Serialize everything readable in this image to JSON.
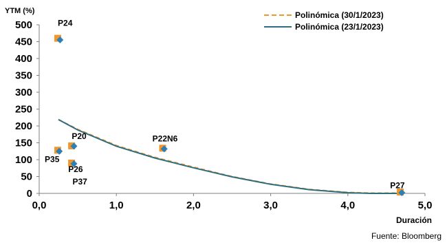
{
  "chart_data": {
    "type": "scatter",
    "ylabel": "YTM (%)",
    "xlabel": "Duración",
    "xlim": [
      0,
      5
    ],
    "ylim": [
      0,
      500
    ],
    "x_ticks": [
      "0,0",
      "1,0",
      "2,0",
      "3,0",
      "4,0",
      "5,0"
    ],
    "y_ticks": [
      "0",
      "50",
      "100",
      "150",
      "200",
      "250",
      "300",
      "350",
      "400",
      "450",
      "500"
    ],
    "legend_position": "top-right",
    "series": [
      {
        "name": "Polinómica (30/1/2023)",
        "marker": "square",
        "color": "#F0962A",
        "trend_style": "dashed",
        "points": [
          {
            "label": "P24",
            "x": 0.24,
            "y": 460
          },
          {
            "label": "P35",
            "x": 0.24,
            "y": 128
          },
          {
            "label": "P20",
            "x": 0.42,
            "y": 141
          },
          {
            "label": "P26",
            "x": 0.42,
            "y": 90
          },
          {
            "label": "P22N6",
            "x": 1.6,
            "y": 134
          },
          {
            "label": "P27",
            "x": 4.68,
            "y": 4
          }
        ],
        "trend": [
          {
            "x": 0.25,
            "y": 219
          },
          {
            "x": 0.5,
            "y": 190
          },
          {
            "x": 1.0,
            "y": 142
          },
          {
            "x": 1.5,
            "y": 107
          },
          {
            "x": 2.0,
            "y": 78
          },
          {
            "x": 2.5,
            "y": 50
          },
          {
            "x": 3.0,
            "y": 28
          },
          {
            "x": 3.5,
            "y": 12
          },
          {
            "x": 4.0,
            "y": 3
          },
          {
            "x": 4.3,
            "y": 1
          },
          {
            "x": 4.7,
            "y": 1
          }
        ]
      },
      {
        "name": "Polinómica (23/1/2023)",
        "marker": "diamond",
        "color": "#2E7FB8",
        "trend_color": "#2C6E80",
        "trend_style": "solid",
        "points": [
          {
            "label": "P24",
            "x": 0.27,
            "y": 455
          },
          {
            "label": "P35",
            "x": 0.26,
            "y": 125
          },
          {
            "label": "P20",
            "x": 0.45,
            "y": 140
          },
          {
            "label": "P37",
            "x": 0.45,
            "y": 88
          },
          {
            "label": "P22N6",
            "x": 1.62,
            "y": 132
          },
          {
            "label": "P27",
            "x": 4.7,
            "y": 2
          }
        ],
        "trend": [
          {
            "x": 0.25,
            "y": 219
          },
          {
            "x": 0.5,
            "y": 188
          },
          {
            "x": 1.0,
            "y": 140
          },
          {
            "x": 1.5,
            "y": 105
          },
          {
            "x": 2.0,
            "y": 76
          },
          {
            "x": 2.5,
            "y": 49
          },
          {
            "x": 3.0,
            "y": 27
          },
          {
            "x": 3.5,
            "y": 11
          },
          {
            "x": 4.0,
            "y": 2
          },
          {
            "x": 4.3,
            "y": 0
          },
          {
            "x": 4.7,
            "y": 0
          }
        ]
      }
    ],
    "annotations": [
      {
        "text": "P24",
        "x": 0.25,
        "y": 460
      },
      {
        "text": "P20",
        "x": 0.44,
        "y": 141
      },
      {
        "text": "P22N6",
        "x": 1.61,
        "y": 134
      },
      {
        "text": "P35",
        "x": 0.25,
        "y": 126
      },
      {
        "text": "P26",
        "x": 0.43,
        "y": 90
      },
      {
        "text": "P37",
        "x": 0.45,
        "y": 88
      },
      {
        "text": "P27",
        "x": 4.69,
        "y": 3
      }
    ]
  },
  "source": "Fuente: Bloomberg"
}
